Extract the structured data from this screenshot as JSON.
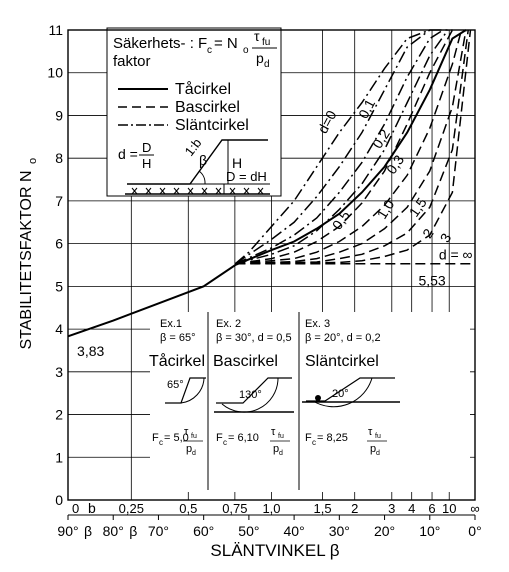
{
  "chart_data": {
    "type": "line",
    "title": "",
    "xlabel": "SLÄNTVINKEL β",
    "ylabel": "STABILITETSFAKTOR N",
    "ylabel_sub": "o",
    "xaxis": {
      "unit": "degrees",
      "reversed": true,
      "range": [
        90,
        0
      ],
      "ticks": [
        {
          "beta": 90,
          "label": "90°"
        },
        {
          "beta": 80,
          "label": "80°"
        },
        {
          "beta": 70,
          "label": "70°"
        },
        {
          "beta": 60,
          "label": "60°"
        },
        {
          "beta": 50,
          "label": "50°"
        },
        {
          "beta": 40,
          "label": "40°"
        },
        {
          "beta": 30,
          "label": "30°"
        },
        {
          "beta": 20,
          "label": "20°"
        },
        {
          "beta": 10,
          "label": "10°"
        },
        {
          "beta": 0,
          "label": "0°"
        }
      ],
      "beta_symbol_after": [
        90,
        80
      ],
      "secondary_scale_label": "b",
      "secondary_ticks": [
        {
          "label": "0",
          "beta": 90
        },
        {
          "label": "0,25",
          "beta": 76
        },
        {
          "label": "0,5",
          "beta": 63.4
        },
        {
          "label": "0,75",
          "beta": 53.1
        },
        {
          "label": "1,0",
          "beta": 45
        },
        {
          "label": "1,5",
          "beta": 33.7
        },
        {
          "label": "2",
          "beta": 26.6
        },
        {
          "label": "3",
          "beta": 18.4
        },
        {
          "label": "4",
          "beta": 14
        },
        {
          "label": "6",
          "beta": 9.5
        },
        {
          "label": "10",
          "beta": 5.7
        },
        {
          "label": "∞",
          "beta": 0
        }
      ]
    },
    "yaxis": {
      "range": [
        0,
        11
      ],
      "ticks": [
        0,
        1,
        2,
        3,
        4,
        5,
        6,
        7,
        8,
        9,
        10,
        11
      ]
    },
    "grid": true,
    "series": [
      {
        "name": "Tåcirkel",
        "style": "solid",
        "x": [
          90,
          80,
          70,
          60,
          53,
          45,
          40,
          35,
          30,
          25,
          20,
          15,
          10,
          5,
          2
        ],
        "y": [
          3.83,
          4.2,
          4.6,
          5.0,
          5.5,
          5.85,
          6.05,
          6.35,
          6.7,
          7.2,
          7.8,
          8.6,
          9.6,
          10.8,
          11
        ]
      },
      {
        "name": "Slänt d=0",
        "label": "d=0",
        "style": "dashdot",
        "x": [
          53,
          50,
          45,
          40,
          35,
          30,
          25,
          20,
          15,
          10,
          5
        ],
        "y": [
          5.53,
          5.8,
          6.4,
          7.0,
          7.8,
          8.6,
          9.3,
          10.1,
          10.8,
          11.0,
          11.0
        ]
      },
      {
        "name": "Slänt d=0,1",
        "label": "0,1",
        "style": "dashdot",
        "x": [
          53,
          45,
          40,
          35,
          30,
          25,
          20,
          15,
          10
        ],
        "y": [
          5.53,
          6.1,
          6.5,
          7.1,
          7.8,
          8.6,
          9.6,
          10.6,
          11.0
        ]
      },
      {
        "name": "Slänt d=0,2",
        "label": "0,2",
        "style": "dashdot",
        "x": [
          53,
          45,
          40,
          35,
          30,
          25,
          20,
          15,
          10,
          7
        ],
        "y": [
          5.53,
          5.9,
          6.2,
          6.6,
          7.2,
          7.9,
          8.8,
          9.9,
          10.8,
          11.0
        ]
      },
      {
        "name": "Slänt d=0,3",
        "label": "0,3",
        "style": "dashdot",
        "x": [
          53,
          45,
          40,
          35,
          30,
          25,
          20,
          15,
          10,
          6
        ],
        "y": [
          5.53,
          5.75,
          5.95,
          6.3,
          6.8,
          7.4,
          8.2,
          9.3,
          10.4,
          11.0
        ]
      },
      {
        "name": "Bas d=0,5",
        "label": "0,5",
        "style": "dashed",
        "x": [
          53,
          45,
          40,
          35,
          30,
          25,
          20,
          15,
          10,
          5
        ],
        "y": [
          5.53,
          5.65,
          5.8,
          6.05,
          6.4,
          6.95,
          7.7,
          8.8,
          10.0,
          11.0
        ]
      },
      {
        "name": "Bas d=1,0",
        "label": "1,0",
        "style": "dashed",
        "x": [
          53,
          45,
          40,
          35,
          30,
          25,
          20,
          15,
          10,
          5,
          3
        ],
        "y": [
          5.53,
          5.6,
          5.65,
          5.8,
          6.05,
          6.4,
          6.9,
          7.6,
          8.7,
          10.2,
          11.0
        ]
      },
      {
        "name": "Bas d=1,5",
        "label": "1,5",
        "style": "dashed",
        "x": [
          53,
          40,
          35,
          30,
          25,
          20,
          15,
          10,
          5,
          2
        ],
        "y": [
          5.53,
          5.58,
          5.65,
          5.8,
          6.0,
          6.35,
          6.85,
          7.7,
          9.2,
          11.0
        ]
      },
      {
        "name": "Bas d=2",
        "label": "2",
        "style": "dashed",
        "x": [
          53,
          35,
          30,
          25,
          20,
          15,
          10,
          5,
          1.5
        ],
        "y": [
          5.53,
          5.57,
          5.65,
          5.75,
          5.95,
          6.25,
          6.85,
          8.2,
          11.0
        ]
      },
      {
        "name": "Bas d=3",
        "label": "3",
        "style": "dashed",
        "x": [
          53,
          30,
          25,
          20,
          15,
          10,
          5,
          1
        ],
        "y": [
          5.53,
          5.56,
          5.6,
          5.7,
          5.85,
          6.2,
          7.2,
          11.0
        ]
      },
      {
        "name": "Bas d=∞",
        "label": "d = ∞",
        "style": "dashed",
        "x": [
          53,
          0
        ],
        "y": [
          5.53,
          5.53
        ]
      }
    ],
    "annotations": [
      {
        "text": "3,83",
        "x": 88,
        "y": 3.6
      },
      {
        "text": "5,53",
        "x": 12.5,
        "y": 5.25
      }
    ],
    "legend": {
      "position": "top-left",
      "heading_line1": "Säkerhets- : F",
      "heading_sub_c": "c",
      "heading_eq": "= N",
      "heading_sub_o": "o",
      "frac_num": "τ",
      "frac_num_sub": "fu",
      "frac_den": "p",
      "frac_den_sub": "d",
      "heading_line2": "faktor",
      "entries": [
        {
          "label": "Tåcirkel",
          "style": "solid"
        },
        {
          "label": "Bascirkel",
          "style": "dashed"
        },
        {
          "label": "Släntcirkel",
          "style": "dashdot"
        }
      ],
      "sketch": {
        "d_text": "d =",
        "d_num": "D",
        "d_den": "H",
        "slope_label": "1:b",
        "beta": "β",
        "h_label": "H",
        "dh_label": "D = dH"
      }
    },
    "examples": [
      {
        "title": "Ex.1",
        "params": "β = 65°",
        "circle": "Tåcirkel",
        "angle": "65°",
        "fc_value": "F",
        "fc_sub": "c",
        "fc_rest": "= 5,0"
      },
      {
        "title": "Ex. 2",
        "params": "β = 30°, d = 0,5",
        "circle": "Bascirkel",
        "angle": "130°",
        "fc_value": "F",
        "fc_sub": "c",
        "fc_rest": "= 6,10"
      },
      {
        "title": "Ex. 3",
        "params": "β = 20°, d = 0,2",
        "circle": "Släntcirkel",
        "angle": "20°",
        "fc_value": "F",
        "fc_sub": "c",
        "fc_rest": "= 8,25"
      }
    ]
  }
}
